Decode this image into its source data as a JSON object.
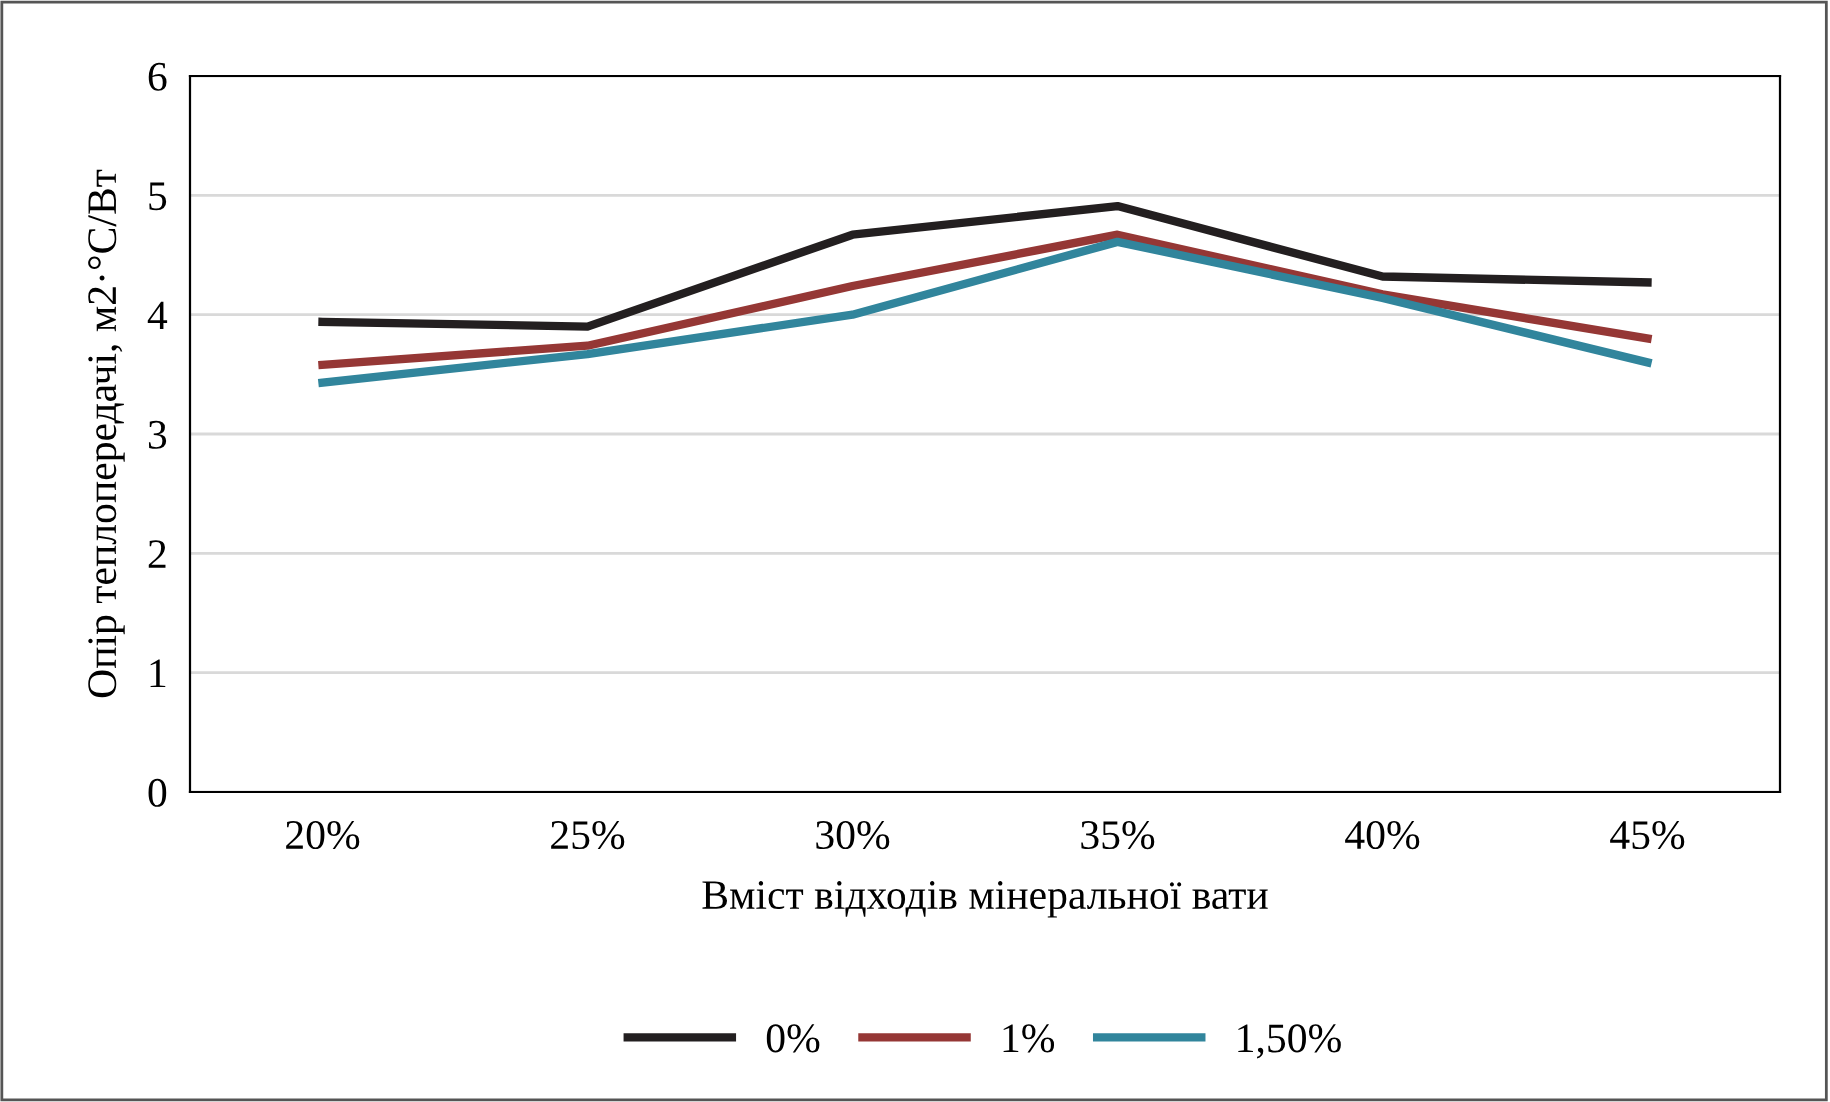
{
  "chart_data": {
    "type": "line",
    "xlabel": "Вміст відходів мінеральної вати",
    "ylabel": "Опір теплопередачі, м2·°С/Вт",
    "categories": [
      "20%",
      "25%",
      "30%",
      "35%",
      "40%",
      "45%"
    ],
    "series": [
      {
        "name": "0%",
        "color": "#231f20",
        "values": [
          3.94,
          3.9,
          4.67,
          4.91,
          4.32,
          4.27
        ]
      },
      {
        "name": "1%",
        "color": "#953735",
        "values": [
          3.58,
          3.74,
          4.24,
          4.67,
          4.17,
          3.8
        ]
      },
      {
        "name": "1,50%",
        "color": "#31859c",
        "values": [
          3.43,
          3.67,
          4.0,
          4.61,
          4.14,
          3.6
        ]
      }
    ],
    "ylim": [
      0,
      6
    ],
    "yticks": [
      0,
      1,
      2,
      3,
      4,
      5,
      6
    ],
    "grid": "y",
    "legend": "bottom",
    "marker": "none",
    "line_style": "solid"
  }
}
